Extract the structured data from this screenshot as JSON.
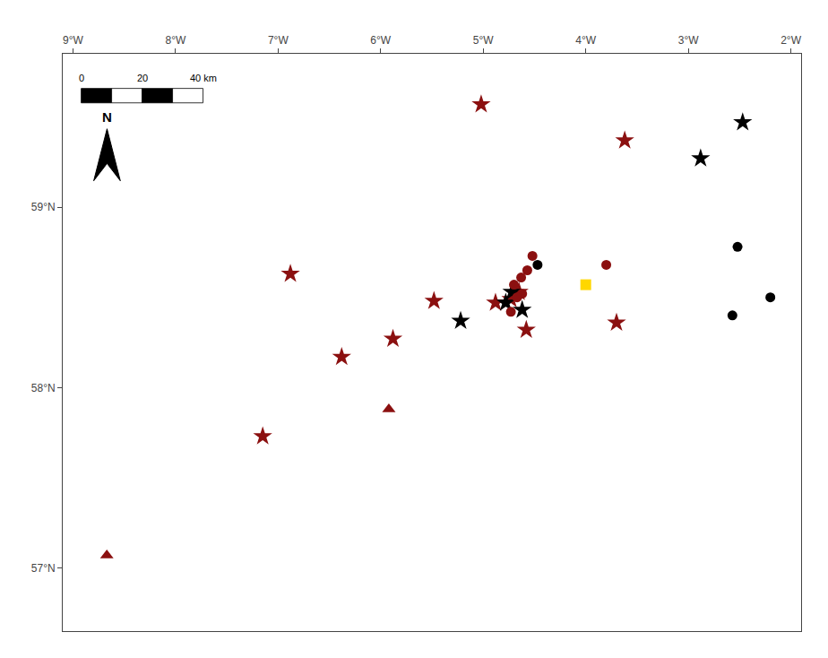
{
  "chart_data": {
    "type": "scatter",
    "xlim": [
      -9.1,
      -1.9
    ],
    "ylim": [
      56.65,
      59.85
    ],
    "xticks": [
      {
        "value": -9,
        "label": "9°W"
      },
      {
        "value": -8,
        "label": "8°W"
      },
      {
        "value": -7,
        "label": "7°W"
      },
      {
        "value": -6,
        "label": "6°W"
      },
      {
        "value": -5,
        "label": "5°W"
      },
      {
        "value": -4,
        "label": "4°W"
      },
      {
        "value": -3,
        "label": "3°W"
      },
      {
        "value": -2,
        "label": "2°W"
      }
    ],
    "yticks": [
      {
        "value": 57,
        "label": "57°N"
      },
      {
        "value": 58,
        "label": "58°N"
      },
      {
        "value": 59,
        "label": "59°N"
      }
    ],
    "grid": false,
    "annotations": [
      "0",
      "20",
      "40 km",
      "N"
    ],
    "series": [
      {
        "color": "#8B1010",
        "marker": "star",
        "x": [
          -5.02,
          -3.62,
          -6.88,
          -5.48,
          -5.88,
          -6.38,
          -7.15,
          -4.65,
          -4.73,
          -4.88,
          -3.7,
          -4.58
        ],
        "values": [
          59.57,
          59.37,
          58.63,
          58.48,
          58.27,
          58.17,
          57.73,
          58.53,
          58.49,
          58.47,
          58.36,
          58.32
        ]
      },
      {
        "color": "#000000",
        "marker": "star",
        "x": [
          -2.47,
          -2.88,
          -4.72,
          -4.78,
          -4.62,
          -5.22
        ],
        "values": [
          59.47,
          59.27,
          58.53,
          58.47,
          58.43,
          58.37
        ]
      },
      {
        "color": "#8B1010",
        "marker": "circle",
        "x": [
          -4.52,
          -4.57,
          -4.63,
          -4.7,
          -3.8,
          -4.62,
          -4.67,
          -4.73
        ],
        "values": [
          58.73,
          58.65,
          58.61,
          58.57,
          58.68,
          58.52,
          58.5,
          58.42
        ]
      },
      {
        "color": "#000000",
        "marker": "circle",
        "x": [
          -4.47,
          -2.52,
          -2.2,
          -2.57
        ],
        "values": [
          58.68,
          58.78,
          58.5,
          58.4
        ]
      },
      {
        "color": "#8B1010",
        "marker": "triangle",
        "x": [
          -8.67,
          -5.92
        ],
        "values": [
          57.07,
          57.88
        ]
      },
      {
        "color": "#FFD700",
        "marker": "square",
        "x": [
          -4.0
        ],
        "values": [
          58.57
        ]
      }
    ]
  }
}
